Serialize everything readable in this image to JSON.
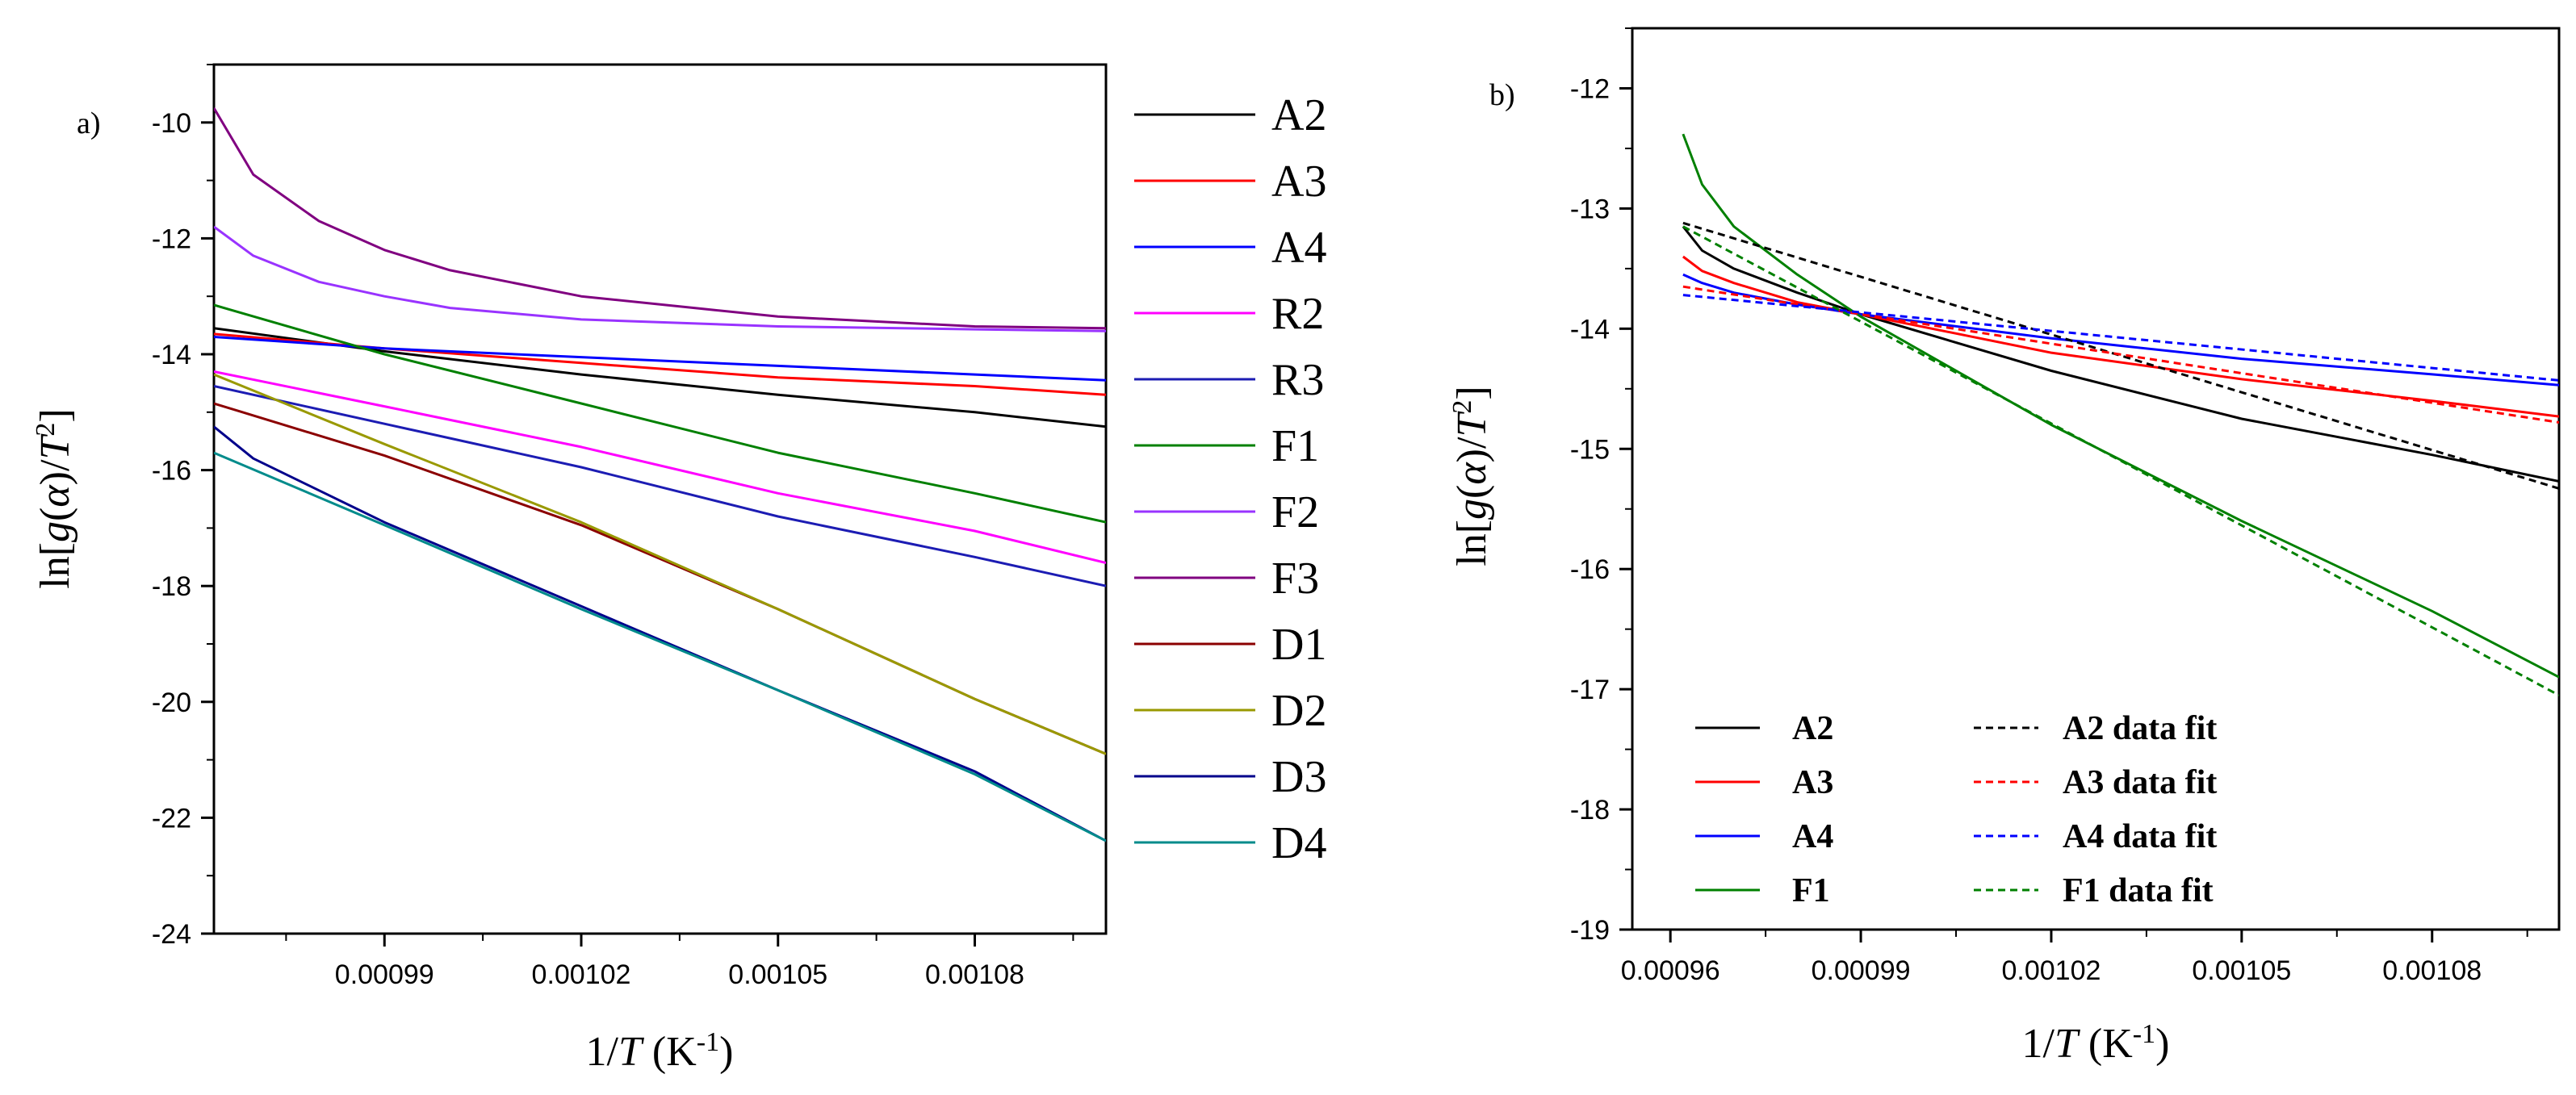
{
  "chart_data": [
    {
      "type": "line",
      "panel_label": "a)",
      "xlabel": {
        "pre": "1/",
        "var": "T",
        "mid": " (K",
        "sup": "-1",
        "post": ")"
      },
      "ylabel": {
        "pre": "ln[",
        "g": "g",
        "lp": "(",
        "alpha": "α",
        "rp": ")/",
        "T": "T",
        "sup": "2",
        "post": "]"
      },
      "xlim": [
        0.000964,
        0.0011
      ],
      "ylim": [
        -24,
        -9
      ],
      "xticks": [
        0.00099,
        0.00102,
        0.00105,
        0.00108
      ],
      "xtick_labels": [
        "0.00099",
        "0.00102",
        "0.00105",
        "0.00108"
      ],
      "yticks": [
        -24,
        -22,
        -20,
        -18,
        -16,
        -14,
        -12,
        -10
      ],
      "ytick_labels": [
        "-24",
        "-22",
        "-20",
        "-18",
        "-16",
        "-14",
        "-12",
        "-10"
      ],
      "legend_position": "outside-right",
      "series": [
        {
          "name": "A2",
          "color": "#000000",
          "style": "solid",
          "x": [
            0.000964,
            0.00099,
            0.00102,
            0.00105,
            0.00108,
            0.0011
          ],
          "y": [
            -13.55,
            -13.95,
            -14.35,
            -14.7,
            -15.0,
            -15.25
          ]
        },
        {
          "name": "A3",
          "color": "#ff0000",
          "style": "solid",
          "x": [
            0.000964,
            0.00099,
            0.00102,
            0.00105,
            0.00108,
            0.0011
          ],
          "y": [
            -13.65,
            -13.9,
            -14.15,
            -14.4,
            -14.55,
            -14.7
          ]
        },
        {
          "name": "A4",
          "color": "#0000ff",
          "style": "solid",
          "x": [
            0.000964,
            0.00099,
            0.00102,
            0.00105,
            0.00108,
            0.0011
          ],
          "y": [
            -13.7,
            -13.9,
            -14.05,
            -14.2,
            -14.35,
            -14.45
          ]
        },
        {
          "name": "R2",
          "color": "#ff00ff",
          "style": "solid",
          "x": [
            0.000964,
            0.00099,
            0.00102,
            0.00105,
            0.00108,
            0.0011
          ],
          "y": [
            -14.3,
            -14.9,
            -15.6,
            -16.4,
            -17.05,
            -17.6
          ]
        },
        {
          "name": "R3",
          "color": "#1c1cb3",
          "style": "solid",
          "x": [
            0.000964,
            0.00099,
            0.00102,
            0.00105,
            0.00108,
            0.0011
          ],
          "y": [
            -14.55,
            -15.2,
            -15.95,
            -16.8,
            -17.5,
            -18.0
          ]
        },
        {
          "name": "F1",
          "color": "#008000",
          "style": "solid",
          "x": [
            0.000964,
            0.00099,
            0.00102,
            0.00105,
            0.00108,
            0.0011
          ],
          "y": [
            -13.15,
            -14.0,
            -14.85,
            -15.7,
            -16.4,
            -16.9
          ]
        },
        {
          "name": "F2",
          "color": "#9933ff",
          "style": "solid",
          "x": [
            0.000964,
            0.00097,
            0.00098,
            0.00099,
            0.001,
            0.00102,
            0.00105,
            0.00108,
            0.0011
          ],
          "y": [
            -11.8,
            -12.3,
            -12.75,
            -13.0,
            -13.2,
            -13.4,
            -13.52,
            -13.57,
            -13.6
          ]
        },
        {
          "name": "F3",
          "color": "#800080",
          "style": "solid",
          "x": [
            0.000964,
            0.00097,
            0.00098,
            0.00099,
            0.001,
            0.00102,
            0.00105,
            0.00108,
            0.0011
          ],
          "y": [
            -9.75,
            -10.9,
            -11.7,
            -12.2,
            -12.55,
            -13.0,
            -13.35,
            -13.52,
            -13.55
          ]
        },
        {
          "name": "D1",
          "color": "#8b0000",
          "style": "solid",
          "x": [
            0.000964,
            0.00099,
            0.00102,
            0.00105,
            0.00108,
            0.0011
          ],
          "y": [
            -14.85,
            -15.75,
            -16.95,
            -18.4,
            -19.95,
            -20.9
          ]
        },
        {
          "name": "D2",
          "color": "#999900",
          "style": "solid",
          "x": [
            0.000964,
            0.00099,
            0.00102,
            0.00105,
            0.00108,
            0.0011
          ],
          "y": [
            -14.35,
            -15.55,
            -16.9,
            -18.4,
            -19.95,
            -20.9
          ]
        },
        {
          "name": "D3",
          "color": "#00008b",
          "style": "solid",
          "x": [
            0.000964,
            0.00097,
            0.00099,
            0.00102,
            0.00105,
            0.00108,
            0.0011
          ],
          "y": [
            -15.25,
            -15.8,
            -16.9,
            -18.35,
            -19.8,
            -21.2,
            -22.4
          ]
        },
        {
          "name": "D4",
          "color": "#008b8b",
          "style": "solid",
          "x": [
            0.000964,
            0.00099,
            0.00102,
            0.00105,
            0.00108,
            0.0011
          ],
          "y": [
            -15.7,
            -16.95,
            -18.4,
            -19.8,
            -21.25,
            -22.4
          ]
        }
      ]
    },
    {
      "type": "line",
      "panel_label": "b)",
      "xlabel": {
        "pre": "1/",
        "var": "T",
        "mid": " (K",
        "sup": "-1",
        "post": ")"
      },
      "ylabel": {
        "pre": "ln[",
        "g": "g",
        "lp": "(",
        "alpha": "α",
        "rp": ")/",
        "T": "T",
        "sup": "2",
        "post": "]"
      },
      "xlim": [
        0.000954,
        0.0011
      ],
      "ylim": [
        -19,
        -11.5
      ],
      "xticks": [
        0.00096,
        0.00099,
        0.00102,
        0.00105,
        0.00108
      ],
      "xtick_labels": [
        "0.00096",
        "0.00099",
        "0.00102",
        "0.00105",
        "0.00108"
      ],
      "yticks": [
        -19,
        -18,
        -17,
        -16,
        -15,
        -14,
        -13,
        -12
      ],
      "ytick_labels": [
        "-19",
        "-18",
        "-17",
        "-16",
        "-15",
        "-14",
        "-13",
        "-12"
      ],
      "legend_position": "bottom-left",
      "series": [
        {
          "name": "A2",
          "color": "#000000",
          "style": "solid",
          "x": [
            0.000962,
            0.000965,
            0.00097,
            0.00098,
            0.00099,
            0.00102,
            0.00105,
            0.00108,
            0.0011
          ],
          "y": [
            -13.15,
            -13.35,
            -13.5,
            -13.7,
            -13.88,
            -14.35,
            -14.75,
            -15.05,
            -15.27
          ]
        },
        {
          "name": "A3",
          "color": "#ff0000",
          "style": "solid",
          "x": [
            0.000962,
            0.000965,
            0.00097,
            0.00098,
            0.00099,
            0.00102,
            0.00105,
            0.00108,
            0.0011
          ],
          "y": [
            -13.4,
            -13.52,
            -13.62,
            -13.78,
            -13.88,
            -14.2,
            -14.42,
            -14.6,
            -14.73
          ]
        },
        {
          "name": "A4",
          "color": "#0000ff",
          "style": "solid",
          "x": [
            0.000962,
            0.000965,
            0.00097,
            0.00098,
            0.00099,
            0.00102,
            0.00105,
            0.00108,
            0.0011
          ],
          "y": [
            -13.55,
            -13.62,
            -13.7,
            -13.8,
            -13.88,
            -14.08,
            -14.25,
            -14.38,
            -14.47
          ]
        },
        {
          "name": "F1",
          "color": "#008000",
          "style": "solid",
          "x": [
            0.000962,
            0.000965,
            0.00097,
            0.00098,
            0.00099,
            0.00102,
            0.00105,
            0.00108,
            0.0011
          ],
          "y": [
            -12.38,
            -12.8,
            -13.15,
            -13.55,
            -13.9,
            -14.8,
            -15.6,
            -16.35,
            -16.9
          ]
        },
        {
          "name": "A2 data fit",
          "color": "#000000",
          "style": "dashed",
          "x": [
            0.000962,
            0.0011
          ],
          "y": [
            -13.12,
            -15.33
          ]
        },
        {
          "name": "A3 data fit",
          "color": "#ff0000",
          "style": "dashed",
          "x": [
            0.000962,
            0.0011
          ],
          "y": [
            -13.65,
            -14.78
          ]
        },
        {
          "name": "A4 data fit",
          "color": "#0000ff",
          "style": "dashed",
          "x": [
            0.000962,
            0.0011
          ],
          "y": [
            -13.72,
            -14.43
          ]
        },
        {
          "name": "F1 data fit",
          "color": "#008000",
          "style": "dashed",
          "x": [
            0.000962,
            0.0011
          ],
          "y": [
            -13.15,
            -17.05
          ]
        }
      ]
    }
  ]
}
